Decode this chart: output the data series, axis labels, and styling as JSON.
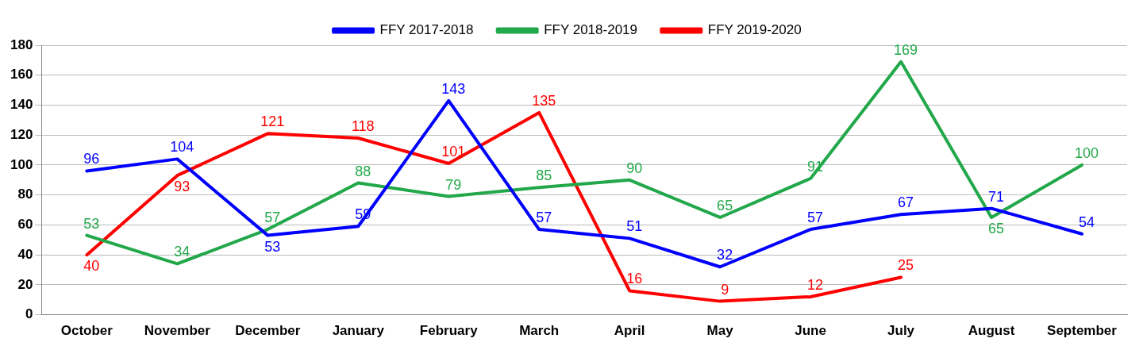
{
  "chart_data": {
    "type": "line",
    "categories": [
      "October",
      "November",
      "December",
      "January",
      "February",
      "March",
      "April",
      "May",
      "June",
      "July",
      "August",
      "September"
    ],
    "series": [
      {
        "name": "FFY 2017-2018",
        "color": "#0000ff",
        "values": [
          96,
          104,
          53,
          59,
          143,
          57,
          51,
          32,
          57,
          67,
          71,
          54
        ]
      },
      {
        "name": "FFY 2018-2019",
        "color": "#22a84a",
        "values": [
          53,
          34,
          57,
          88,
          79,
          85,
          90,
          65,
          91,
          169,
          65,
          100
        ]
      },
      {
        "name": "FFY 2019-2020",
        "color": "#ff0000",
        "values": [
          40,
          93,
          121,
          118,
          101,
          135,
          16,
          9,
          12,
          25,
          null,
          null
        ]
      }
    ],
    "ylim": [
      0,
      180
    ],
    "yticks": [
      0,
      20,
      40,
      60,
      80,
      100,
      120,
      140,
      160,
      180
    ],
    "grid": "y",
    "legend": "top",
    "marker": "none",
    "line_style": "solid",
    "data_labels": true
  }
}
